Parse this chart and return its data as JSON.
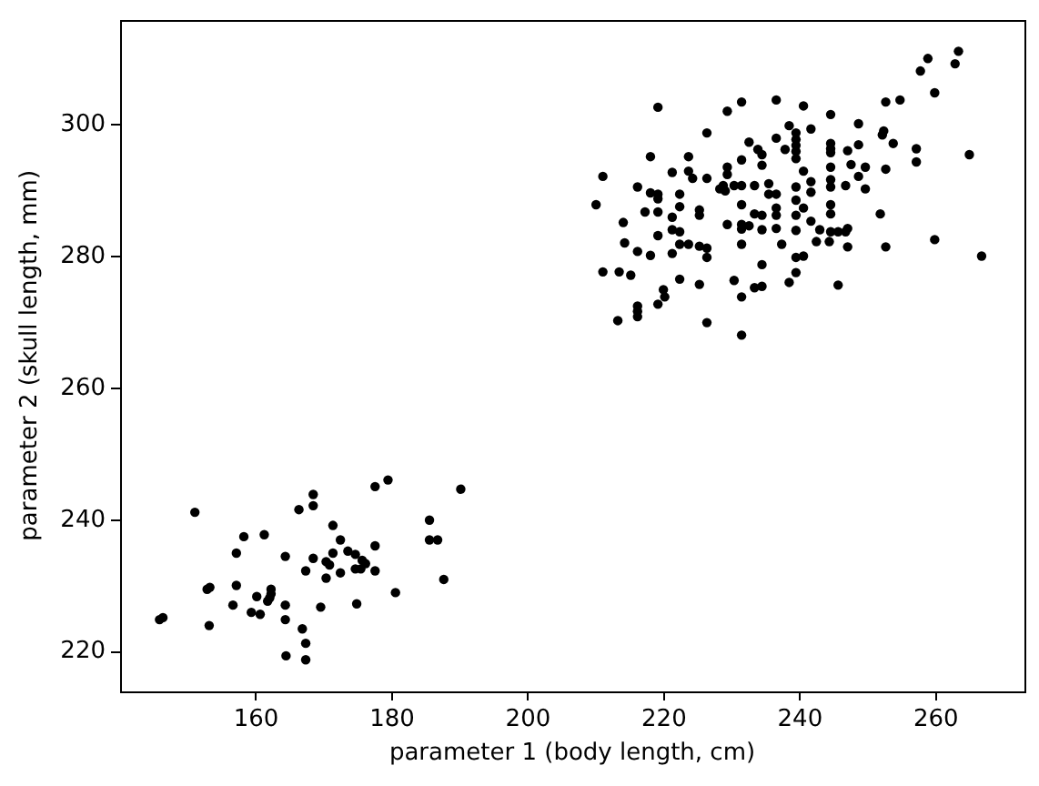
{
  "chart_data": {
    "type": "scatter",
    "xlabel": "parameter 1 (body length, cm)",
    "ylabel": "parameter 2 (skull length, mm)",
    "color": "#000000",
    "marker": "circle",
    "xlim": [
      140,
      273
    ],
    "ylim": [
      214,
      316
    ],
    "xticks": [
      160,
      180,
      200,
      220,
      240,
      260
    ],
    "yticks": [
      220,
      240,
      260,
      280,
      300
    ],
    "x": [
      145.8,
      146.3,
      151.0,
      168.4,
      166.3,
      168.4,
      177.5,
      179.4,
      190.1,
      185.5,
      185.5,
      186.7,
      187.6,
      180.5,
      158.2,
      161.2,
      157.1,
      164.3,
      171.3,
      172.4,
      171.3,
      168.4,
      167.3,
      170.3,
      170.8,
      170.3,
      172.4,
      173.5,
      174.6,
      175.6,
      176.1,
      174.6,
      175.4,
      177.5,
      177.5,
      152.8,
      153.2,
      157.1,
      160.1,
      162.2,
      162.2,
      162.0,
      161.7,
      156.6,
      159.3,
      160.6,
      164.3,
      164.3,
      169.5,
      174.8,
      153.1,
      166.8,
      167.3,
      167.3,
      164.4,
      219.1,
      229.3,
      231.4,
      236.5,
      240.5,
      226.3,
      232.5,
      233.8,
      234.4,
      236.5,
      238.4,
      237.8,
      218.0,
      223.6,
      231.4,
      234.4,
      211.0,
      221.2,
      223.6,
      224.2,
      226.3,
      229.3,
      229.3,
      228.7,
      229.0,
      228.2,
      230.3,
      231.4,
      233.3,
      235.4,
      216.1,
      218.0,
      219.1,
      219.1,
      222.3,
      235.4,
      236.5,
      210.0,
      222.3,
      217.2,
      219.1,
      221.2,
      225.2,
      225.2,
      231.4,
      233.3,
      234.4,
      236.5,
      236.5,
      214.0,
      221.2,
      222.3,
      219.1,
      229.3,
      231.4,
      231.4,
      232.5,
      234.4,
      236.5,
      214.2,
      222.3,
      223.6,
      225.2,
      231.4,
      237.3,
      216.1,
      218.0,
      221.2,
      226.3,
      226.3,
      211.0,
      213.4,
      215.1,
      222.3,
      225.2,
      230.3,
      234.4,
      233.3,
      234.4,
      231.4,
      219.9,
      220.1,
      219.1,
      216.1,
      216.1,
      216.1,
      213.2,
      226.3,
      231.4,
      258.8,
      257.7,
      263.3,
      262.8,
      259.8,
      252.6,
      254.7,
      244.5,
      248.6,
      241.6,
      239.4,
      239.4,
      239.4,
      239.4,
      239.4,
      252.3,
      252.1,
      253.7,
      244.5,
      244.5,
      244.5,
      248.6,
      247.0,
      257.1,
      257.1,
      264.9,
      240.5,
      247.5,
      249.6,
      244.5,
      248.6,
      252.6,
      241.6,
      241.6,
      244.5,
      244.5,
      246.7,
      249.6,
      239.4,
      239.4,
      244.5,
      244.5,
      240.5,
      239.4,
      251.8,
      241.6,
      239.4,
      242.9,
      244.5,
      245.6,
      246.7,
      247.0,
      242.4,
      244.3,
      247.0,
      252.6,
      259.8,
      239.4,
      240.5,
      266.7,
      239.4,
      238.4,
      245.6
    ],
    "values": [
      224.9,
      225.2,
      241.2,
      243.9,
      241.6,
      242.2,
      245.1,
      246.1,
      244.7,
      240.0,
      237.0,
      237.0,
      231.0,
      229.0,
      237.5,
      237.8,
      235.0,
      234.5,
      239.2,
      237.0,
      235.0,
      234.2,
      232.3,
      233.7,
      233.2,
      231.2,
      232.0,
      235.3,
      234.8,
      233.9,
      233.4,
      232.6,
      232.6,
      236.1,
      232.3,
      229.5,
      229.8,
      230.1,
      228.4,
      229.5,
      228.8,
      228.2,
      227.7,
      227.1,
      226.0,
      225.7,
      227.1,
      224.9,
      226.8,
      227.3,
      224.0,
      223.5,
      221.3,
      218.8,
      219.4,
      302.7,
      302.1,
      303.5,
      303.8,
      302.9,
      298.8,
      297.4,
      296.3,
      295.5,
      298.0,
      299.9,
      296.3,
      295.2,
      295.2,
      294.7,
      293.9,
      292.2,
      292.8,
      293.0,
      291.9,
      291.9,
      293.6,
      292.5,
      290.8,
      290.0,
      290.3,
      290.8,
      290.8,
      290.8,
      291.1,
      290.6,
      289.7,
      289.5,
      288.8,
      289.5,
      289.5,
      289.5,
      287.9,
      287.6,
      286.8,
      286.8,
      286.0,
      287.1,
      286.3,
      287.9,
      286.5,
      286.3,
      287.4,
      286.3,
      285.2,
      284.1,
      283.8,
      283.2,
      284.9,
      284.9,
      284.2,
      284.7,
      284.1,
      284.3,
      282.1,
      281.9,
      281.9,
      281.6,
      281.9,
      281.9,
      280.8,
      280.2,
      280.5,
      281.3,
      279.9,
      277.7,
      277.7,
      277.2,
      276.6,
      275.8,
      276.4,
      278.8,
      275.3,
      275.5,
      273.9,
      275.0,
      273.9,
      272.8,
      272.5,
      271.7,
      270.9,
      270.3,
      270.0,
      268.1,
      310.1,
      308.2,
      311.2,
      309.3,
      304.9,
      303.5,
      303.8,
      301.6,
      300.2,
      299.4,
      298.8,
      297.8,
      296.9,
      296.0,
      294.9,
      299.1,
      298.5,
      297.2,
      297.2,
      296.4,
      295.8,
      297.0,
      296.1,
      296.4,
      294.4,
      295.5,
      293.0,
      294.0,
      293.6,
      293.6,
      292.2,
      293.3,
      291.4,
      289.8,
      291.7,
      290.6,
      290.8,
      290.3,
      290.6,
      288.6,
      287.9,
      286.5,
      287.4,
      286.3,
      286.5,
      285.4,
      284.0,
      284.1,
      283.8,
      283.8,
      283.8,
      284.3,
      282.3,
      282.3,
      281.5,
      281.5,
      282.6,
      279.9,
      280.1,
      280.1,
      277.6,
      276.1,
      275.7
    ]
  }
}
